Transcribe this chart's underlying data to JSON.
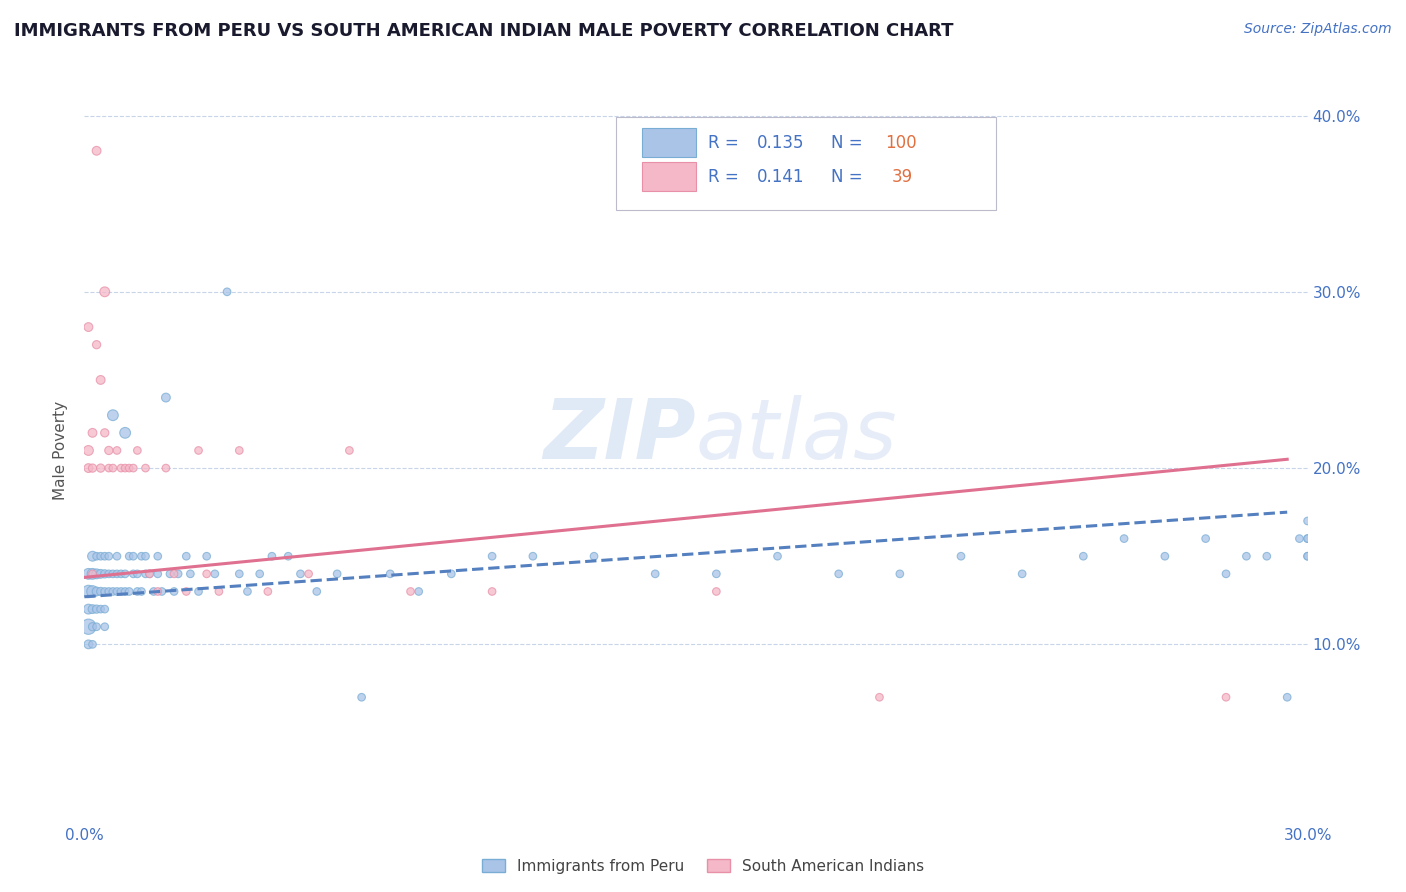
{
  "title": "IMMIGRANTS FROM PERU VS SOUTH AMERICAN INDIAN MALE POVERTY CORRELATION CHART",
  "source": "Source: ZipAtlas.com",
  "ylabel": "Male Poverty",
  "xlim": [
    0.0,
    0.3
  ],
  "ylim": [
    0.0,
    0.42
  ],
  "xticks": [
    0.0,
    0.05,
    0.1,
    0.15,
    0.2,
    0.25,
    0.3
  ],
  "xtick_labels": [
    "0.0%",
    "",
    "",
    "",
    "",
    "",
    "30.0%"
  ],
  "ytick_positions": [
    0.1,
    0.2,
    0.3,
    0.4
  ],
  "right_ytick_labels": [
    "10.0%",
    "20.0%",
    "30.0%",
    "40.0%"
  ],
  "watermark": "ZIPatlas",
  "background_color": "#ffffff",
  "grid_color": "#c8d4e8",
  "title_color": "#1a1a2e",
  "tick_color": "#4472c4",
  "blue_series": {
    "name": "Immigrants from Peru",
    "face_color": "#aac4e8",
    "edge_color": "#7aadd4",
    "line_color": "#5580c0",
    "line_style": "--",
    "x": [
      0.001,
      0.001,
      0.001,
      0.001,
      0.001,
      0.002,
      0.002,
      0.002,
      0.002,
      0.002,
      0.002,
      0.003,
      0.003,
      0.003,
      0.003,
      0.003,
      0.004,
      0.004,
      0.004,
      0.004,
      0.005,
      0.005,
      0.005,
      0.005,
      0.005,
      0.006,
      0.006,
      0.006,
      0.007,
      0.007,
      0.007,
      0.008,
      0.008,
      0.008,
      0.009,
      0.009,
      0.01,
      0.01,
      0.01,
      0.011,
      0.011,
      0.012,
      0.012,
      0.013,
      0.013,
      0.014,
      0.014,
      0.015,
      0.015,
      0.016,
      0.017,
      0.018,
      0.018,
      0.019,
      0.02,
      0.021,
      0.022,
      0.023,
      0.025,
      0.026,
      0.028,
      0.03,
      0.032,
      0.035,
      0.038,
      0.04,
      0.043,
      0.046,
      0.05,
      0.053,
      0.057,
      0.062,
      0.068,
      0.075,
      0.082,
      0.09,
      0.1,
      0.11,
      0.125,
      0.14,
      0.155,
      0.17,
      0.185,
      0.2,
      0.215,
      0.23,
      0.245,
      0.255,
      0.265,
      0.275,
      0.28,
      0.285,
      0.29,
      0.295,
      0.298,
      0.3,
      0.3,
      0.3,
      0.3,
      0.3
    ],
    "y": [
      0.11,
      0.13,
      0.14,
      0.12,
      0.1,
      0.13,
      0.14,
      0.15,
      0.12,
      0.11,
      0.1,
      0.14,
      0.13,
      0.12,
      0.15,
      0.11,
      0.14,
      0.13,
      0.12,
      0.15,
      0.14,
      0.13,
      0.15,
      0.12,
      0.11,
      0.14,
      0.13,
      0.15,
      0.23,
      0.14,
      0.13,
      0.14,
      0.13,
      0.15,
      0.14,
      0.13,
      0.22,
      0.14,
      0.13,
      0.15,
      0.13,
      0.14,
      0.15,
      0.13,
      0.14,
      0.15,
      0.13,
      0.14,
      0.15,
      0.14,
      0.13,
      0.15,
      0.14,
      0.13,
      0.24,
      0.14,
      0.13,
      0.14,
      0.15,
      0.14,
      0.13,
      0.15,
      0.14,
      0.3,
      0.14,
      0.13,
      0.14,
      0.15,
      0.15,
      0.14,
      0.13,
      0.14,
      0.07,
      0.14,
      0.13,
      0.14,
      0.15,
      0.15,
      0.15,
      0.14,
      0.14,
      0.15,
      0.14,
      0.14,
      0.15,
      0.14,
      0.15,
      0.16,
      0.15,
      0.16,
      0.14,
      0.15,
      0.15,
      0.07,
      0.16,
      0.17,
      0.15,
      0.15,
      0.16,
      0.16
    ],
    "sizes": [
      120,
      80,
      60,
      50,
      40,
      70,
      60,
      50,
      40,
      35,
      30,
      50,
      40,
      35,
      30,
      30,
      40,
      35,
      30,
      30,
      35,
      30,
      30,
      30,
      30,
      30,
      30,
      30,
      60,
      30,
      30,
      30,
      30,
      30,
      30,
      30,
      60,
      30,
      30,
      30,
      30,
      30,
      30,
      30,
      30,
      30,
      30,
      30,
      30,
      30,
      30,
      30,
      30,
      30,
      40,
      30,
      30,
      30,
      30,
      30,
      30,
      30,
      30,
      30,
      30,
      30,
      30,
      30,
      30,
      30,
      30,
      30,
      30,
      30,
      30,
      30,
      30,
      30,
      30,
      30,
      30,
      30,
      30,
      30,
      30,
      30,
      30,
      30,
      30,
      30,
      30,
      30,
      30,
      30,
      30,
      30,
      30,
      30,
      30,
      30
    ]
  },
  "pink_series": {
    "name": "South American Indians",
    "face_color": "#f4b8c8",
    "edge_color": "#e890a8",
    "line_color": "#e07090",
    "line_style": "-",
    "x": [
      0.001,
      0.001,
      0.001,
      0.002,
      0.002,
      0.002,
      0.003,
      0.003,
      0.004,
      0.004,
      0.005,
      0.005,
      0.006,
      0.006,
      0.007,
      0.008,
      0.009,
      0.01,
      0.011,
      0.012,
      0.013,
      0.015,
      0.016,
      0.018,
      0.02,
      0.022,
      0.025,
      0.028,
      0.03,
      0.033,
      0.038,
      0.045,
      0.055,
      0.065,
      0.08,
      0.1,
      0.155,
      0.195,
      0.28
    ],
    "y": [
      0.21,
      0.2,
      0.28,
      0.22,
      0.2,
      0.14,
      0.38,
      0.27,
      0.25,
      0.2,
      0.3,
      0.22,
      0.21,
      0.2,
      0.2,
      0.21,
      0.2,
      0.2,
      0.2,
      0.2,
      0.21,
      0.2,
      0.14,
      0.13,
      0.2,
      0.14,
      0.13,
      0.21,
      0.14,
      0.13,
      0.21,
      0.13,
      0.14,
      0.21,
      0.13,
      0.13,
      0.13,
      0.07,
      0.07
    ],
    "sizes": [
      50,
      40,
      40,
      40,
      35,
      30,
      40,
      35,
      40,
      35,
      50,
      35,
      35,
      30,
      30,
      30,
      30,
      30,
      30,
      30,
      30,
      30,
      30,
      30,
      30,
      30,
      30,
      30,
      30,
      30,
      30,
      30,
      30,
      30,
      30,
      30,
      30,
      30,
      30
    ]
  },
  "blue_line": {
    "x0": 0.0,
    "y0": 0.127,
    "x1": 0.295,
    "y1": 0.175
  },
  "pink_line": {
    "x0": 0.0,
    "y0": 0.138,
    "x1": 0.295,
    "y1": 0.205
  }
}
